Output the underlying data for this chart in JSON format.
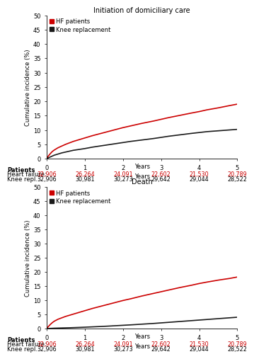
{
  "title1": "Initiation of domiciliary care",
  "title2": "Death",
  "ylabel": "Cumulative incidence (%)",
  "xlabel": "Years",
  "ylim": [
    0,
    50
  ],
  "yticks": [
    0,
    5,
    10,
    15,
    20,
    25,
    30,
    35,
    40,
    45,
    50
  ],
  "xlim": [
    0,
    5
  ],
  "xticks": [
    0,
    1,
    2,
    3,
    4,
    5
  ],
  "hf_color": "#cc0000",
  "knee_color": "#1a1a1a",
  "legend_labels": [
    "HF patients",
    "Knee replacement"
  ],
  "table_header": "Years",
  "table_row1_label": "Heart failure:",
  "table_row2_label": "Knee repl.:",
  "patients_label": "Patients",
  "table_hf_values": [
    "32,906",
    "26,264",
    "24,091",
    "22,602",
    "21,530",
    "20,789"
  ],
  "table_knee_values": [
    "32,906",
    "30,981",
    "30,273",
    "29,642",
    "29,044",
    "28,522"
  ],
  "hf_domiciliary_x": [
    0,
    0.05,
    0.1,
    0.15,
    0.2,
    0.3,
    0.4,
    0.5,
    0.6,
    0.7,
    0.8,
    0.9,
    1.0,
    1.2,
    1.4,
    1.6,
    1.8,
    2.0,
    2.2,
    2.5,
    2.8,
    3.0,
    3.2,
    3.5,
    3.8,
    4.0,
    4.2,
    4.5,
    4.8,
    5.0
  ],
  "hf_domiciliary_y": [
    0,
    1.0,
    1.8,
    2.5,
    3.0,
    3.8,
    4.4,
    5.0,
    5.5,
    6.0,
    6.4,
    6.8,
    7.2,
    8.0,
    8.7,
    9.4,
    10.1,
    10.8,
    11.4,
    12.3,
    13.1,
    13.7,
    14.3,
    15.1,
    15.9,
    16.4,
    17.0,
    17.7,
    18.5,
    19.0
  ],
  "knee_domiciliary_x": [
    0,
    0.05,
    0.1,
    0.15,
    0.2,
    0.3,
    0.4,
    0.5,
    0.6,
    0.7,
    0.8,
    0.9,
    1.0,
    1.2,
    1.4,
    1.6,
    1.8,
    2.0,
    2.2,
    2.5,
    2.8,
    3.0,
    3.2,
    3.5,
    3.8,
    4.0,
    4.2,
    4.5,
    4.8,
    5.0
  ],
  "knee_domiciliary_y": [
    0,
    0.3,
    0.6,
    0.9,
    1.2,
    1.6,
    2.0,
    2.3,
    2.6,
    2.9,
    3.1,
    3.3,
    3.5,
    4.0,
    4.4,
    4.8,
    5.2,
    5.6,
    6.0,
    6.5,
    7.0,
    7.4,
    7.8,
    8.3,
    8.8,
    9.1,
    9.4,
    9.7,
    10.0,
    10.2
  ],
  "hf_death_x": [
    0,
    0.05,
    0.1,
    0.15,
    0.2,
    0.3,
    0.4,
    0.5,
    0.6,
    0.7,
    0.8,
    0.9,
    1.0,
    1.2,
    1.4,
    1.6,
    1.8,
    2.0,
    2.2,
    2.5,
    2.8,
    3.0,
    3.2,
    3.5,
    3.8,
    4.0,
    4.2,
    4.5,
    4.8,
    5.0
  ],
  "hf_death_y": [
    0,
    0.8,
    1.5,
    2.1,
    2.6,
    3.3,
    3.8,
    4.3,
    4.7,
    5.1,
    5.5,
    5.9,
    6.3,
    7.1,
    7.8,
    8.5,
    9.2,
    9.9,
    10.5,
    11.5,
    12.4,
    13.0,
    13.6,
    14.5,
    15.3,
    15.9,
    16.4,
    17.1,
    17.7,
    18.2
  ],
  "knee_death_x": [
    0,
    0.05,
    0.1,
    0.15,
    0.2,
    0.3,
    0.4,
    0.5,
    0.6,
    0.7,
    0.8,
    0.9,
    1.0,
    1.2,
    1.4,
    1.6,
    1.8,
    2.0,
    2.2,
    2.5,
    2.8,
    3.0,
    3.2,
    3.5,
    3.8,
    4.0,
    4.2,
    4.5,
    4.8,
    5.0
  ],
  "knee_death_y": [
    0,
    0.03,
    0.06,
    0.09,
    0.12,
    0.16,
    0.2,
    0.24,
    0.28,
    0.33,
    0.38,
    0.43,
    0.48,
    0.6,
    0.72,
    0.85,
    1.0,
    1.15,
    1.3,
    1.55,
    1.8,
    2.0,
    2.2,
    2.5,
    2.8,
    3.0,
    3.2,
    3.5,
    3.8,
    4.0
  ]
}
